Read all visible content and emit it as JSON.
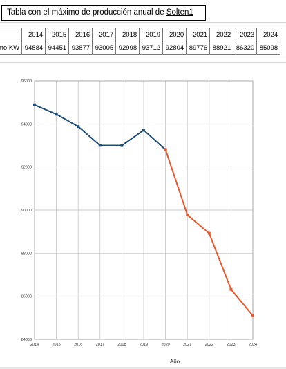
{
  "header": {
    "title_prefix": "Tabla con el máximo de producción anual de ",
    "title_link": "Solten1"
  },
  "table": {
    "row_label": "mo KW",
    "years": [
      "2014",
      "2015",
      "2016",
      "2017",
      "2018",
      "2019",
      "2020",
      "2021",
      "2022",
      "2023",
      "2024"
    ],
    "values": [
      "94884",
      "94451",
      "93877",
      "93005",
      "92998",
      "93712",
      "92804",
      "89776",
      "88921",
      "86320",
      "85098"
    ]
  },
  "chart_data": {
    "type": "line",
    "title": "",
    "xlabel": "Año",
    "ylabel": "",
    "x": [
      2014,
      2015,
      2016,
      2017,
      2018,
      2019,
      2020,
      2021,
      2022,
      2023,
      2024
    ],
    "ylim": [
      84000,
      96000
    ],
    "yticks": [
      84000,
      86000,
      88000,
      90000,
      92000,
      94000,
      96000
    ],
    "grid": true,
    "series": [
      {
        "color": "#1f4e79",
        "x": [
          2014,
          2015,
          2016,
          2017,
          2018,
          2019,
          2020
        ],
        "values": [
          94884,
          94451,
          93877,
          93005,
          92998,
          93712,
          92804
        ]
      },
      {
        "color": "#e8582c",
        "x": [
          2020,
          2021,
          2022,
          2023,
          2024
        ],
        "values": [
          92804,
          89776,
          88921,
          86320,
          85098
        ]
      }
    ]
  }
}
